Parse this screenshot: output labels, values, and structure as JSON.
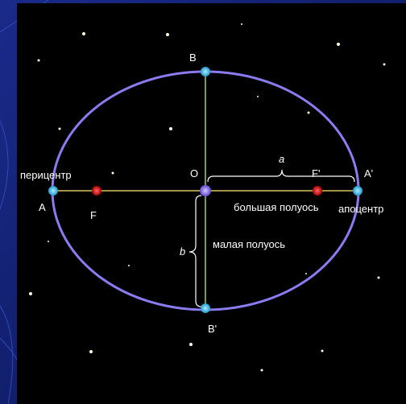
{
  "diagram": {
    "points": {
      "pericenter_name": "перицентр",
      "pericenter": "A",
      "focus1": "F",
      "center": "O",
      "top": "B",
      "bottom": "B'",
      "focus2": "F'",
      "apocenter": "A'",
      "apocenter_name": "апоцентр"
    },
    "semi_major": {
      "symbol": "a",
      "label": "большая полуось"
    },
    "semi_minor": {
      "symbol": "b",
      "label": "малая полуось"
    }
  }
}
